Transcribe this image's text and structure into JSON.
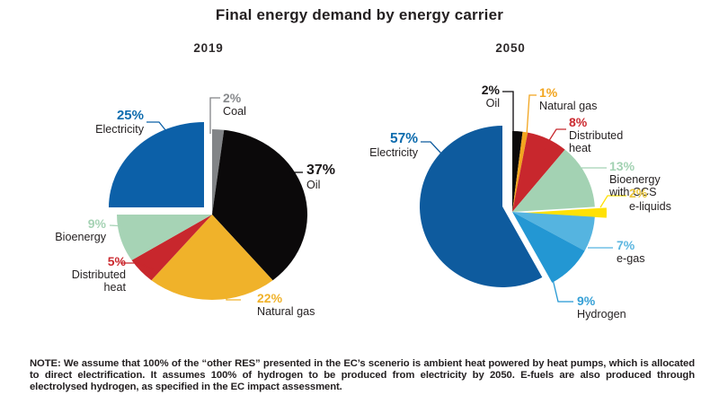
{
  "title": "Final energy demand by energy carrier",
  "note": "NOTE: We assume that 100% of the “other RES” presented in the EC’s scenerio is ambient heat powered by heat pumps, which is allocated to direct electrification. It assumes 100% of hydrogen to be produced from electricity by 2050. E-fuels are also produced through electrolysed hydrogen, as specified in the EC impact assessment.",
  "chart_data": [
    {
      "type": "pie",
      "title": "2019",
      "unit": "%",
      "order": "clockwise from 12 o'clock",
      "slices": [
        {
          "label": "Coal",
          "label_lines": [
            "Coal"
          ],
          "value": 2,
          "pct": "2%",
          "color": "#828487",
          "label_color": "#87898c"
        },
        {
          "label": "Oil",
          "label_lines": [
            "Oil"
          ],
          "value": 37,
          "pct": "37%",
          "color": "#0b090a",
          "label_color": "#1a1718"
        },
        {
          "label": "Natural gas",
          "label_lines": [
            "Natural gas"
          ],
          "value": 22,
          "pct": "22%",
          "color": "#f0b22a",
          "label_color": "#f0b22a"
        },
        {
          "label": "Distributed heat",
          "label_lines": [
            "Distributed",
            "heat"
          ],
          "value": 5,
          "pct": "5%",
          "color": "#c8272d",
          "label_color": "#cb2a30"
        },
        {
          "label": "Bioenergy",
          "label_lines": [
            "Bioenergy"
          ],
          "value": 9,
          "pct": "9%",
          "color": "#a6d3b5",
          "label_color": "#a6d3b5"
        },
        {
          "label": "Electricity",
          "label_lines": [
            "Electricity"
          ],
          "value": 25,
          "pct": "25%",
          "color": "#0c60a8",
          "label_color": "#0e6cae",
          "exploded": true
        }
      ]
    },
    {
      "type": "pie",
      "title": "2050",
      "unit": "%",
      "order": "clockwise from 12 o'clock",
      "slices": [
        {
          "label": "Oil",
          "label_lines": [
            "Oil"
          ],
          "value": 2,
          "pct": "2%",
          "color": "#0b090a",
          "label_color": "#1a1718"
        },
        {
          "label": "Natural gas",
          "label_lines": [
            "Natural gas"
          ],
          "value": 1,
          "pct": "1%",
          "color": "#f2a51f",
          "label_color": "#f2a51f"
        },
        {
          "label": "Distributed heat",
          "label_lines": [
            "Distributed",
            "heat"
          ],
          "value": 8,
          "pct": "8%",
          "color": "#c8272d",
          "label_color": "#cb2a30"
        },
        {
          "label": "Bioenergy with CCS",
          "label_lines": [
            "Bioenergy",
            "with CCS"
          ],
          "value": 13,
          "pct": "13%",
          "color": "#a3d2b3",
          "label_color": "#a3d2b3"
        },
        {
          "label": "e-liquids",
          "label_lines": [
            "e-liquids"
          ],
          "value": 2,
          "pct": "2%",
          "color": "#ffe105",
          "label_color": "#e8c43c",
          "exploded": true
        },
        {
          "label": "e-gas",
          "label_lines": [
            "e-gas"
          ],
          "value": 7,
          "pct": "7%",
          "color": "#55b4e0",
          "label_color": "#5cb6e0"
        },
        {
          "label": "Hydrogen",
          "label_lines": [
            "Hydrogen"
          ],
          "value": 9,
          "pct": "9%",
          "color": "#2397d3",
          "label_color": "#36a0d6"
        },
        {
          "label": "Electricity",
          "label_lines": [
            "Electricity"
          ],
          "value": 57,
          "pct": "57%",
          "color": "#0e5b9e",
          "label_color": "#0e6cae",
          "exploded": true
        }
      ]
    }
  ]
}
